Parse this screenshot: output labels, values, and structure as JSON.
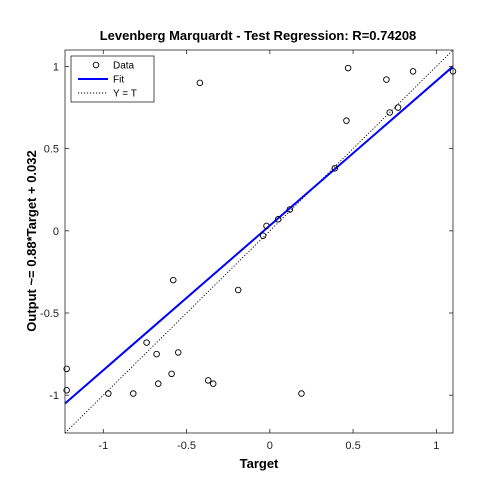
{
  "chart_data": {
    "type": "scatter",
    "title": "Levenberg Marquardt - Test Regression: R=0.74208",
    "xlabel": "Target",
    "ylabel": "Output ~= 0.88*Target + 0.032",
    "xlim": [
      -1.23,
      1.1
    ],
    "ylim": [
      -1.23,
      1.1
    ],
    "xticks": [
      -1,
      -0.5,
      0,
      0.5,
      1
    ],
    "yticks": [
      -1,
      -0.5,
      0,
      0.5,
      1
    ],
    "xtick_labels": [
      "-1",
      "-0.5",
      "0",
      "0.5",
      "1"
    ],
    "ytick_labels": [
      "-1",
      "-0.5",
      "0",
      "0.5",
      "1"
    ],
    "legend": {
      "position": "top-left",
      "entries": [
        "Data",
        "Fit",
        "Y = T"
      ]
    },
    "fit": {
      "slope": 0.88,
      "intercept": 0.032,
      "color": "#0000ff"
    },
    "identity_line_color": "#000000",
    "marker_color": "#000000",
    "grid": false,
    "series": [
      {
        "name": "Data",
        "x": [
          -1.22,
          -1.22,
          -0.97,
          -0.82,
          -0.74,
          -0.68,
          -0.67,
          -0.59,
          -0.58,
          -0.55,
          -0.42,
          -0.37,
          -0.34,
          -0.19,
          -0.04,
          -0.02,
          0.05,
          0.12,
          0.19,
          0.39,
          0.46,
          0.47,
          0.7,
          0.72,
          0.77,
          0.86,
          1.1
        ],
        "y": [
          -0.84,
          -0.97,
          -0.99,
          -0.99,
          -0.68,
          -0.75,
          -0.93,
          -0.87,
          -0.3,
          -0.74,
          0.9,
          -0.91,
          -0.93,
          -0.36,
          -0.03,
          0.03,
          0.07,
          0.13,
          -0.99,
          0.38,
          0.67,
          0.99,
          0.92,
          0.72,
          0.75,
          0.97,
          0.97
        ]
      }
    ]
  }
}
